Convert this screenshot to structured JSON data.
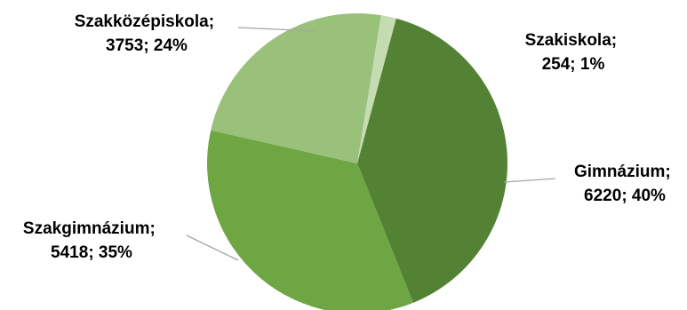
{
  "chart_data": {
    "type": "pie",
    "title": "",
    "slices": [
      {
        "name": "Gimnázium",
        "value": 6220,
        "percent": "40%",
        "color": "#548235"
      },
      {
        "name": "Szakgimnázium",
        "value": 5418,
        "percent": "35%",
        "color": "#6ea644"
      },
      {
        "name": "Szakközépiskola",
        "value": 3753,
        "percent": "24%",
        "color": "#9ac17a"
      },
      {
        "name": "Szakiskola",
        "value": 254,
        "percent": "1%",
        "color": "#c5dcb3"
      }
    ],
    "labels": [
      {
        "line1": "Gimnázium;",
        "line2": "6220; 40%"
      },
      {
        "line1": "Szakgimnázium;",
        "line2": "5418; 35%"
      },
      {
        "line1": "Szakközépiskola;",
        "line2": "3753; 24%"
      },
      {
        "line1": "Szakiskola;",
        "line2": "254; 1%"
      }
    ],
    "legend": "none",
    "start_angle_deg": 15,
    "direction": "clockwise"
  }
}
